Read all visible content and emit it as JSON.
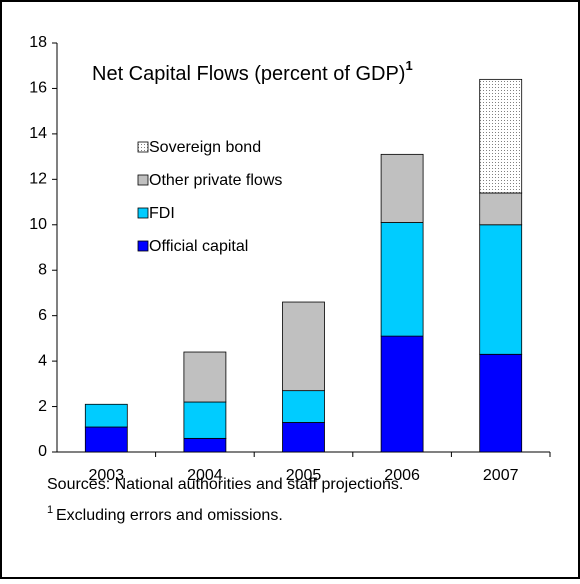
{
  "chart_data": {
    "type": "stacked-bar",
    "title": "Net Capital Flows (percent of GDP)",
    "title_superscript": "1",
    "categories": [
      "2003",
      "2004",
      "2005",
      "2006",
      "2007"
    ],
    "series": [
      {
        "name": "Official capital",
        "color": "#0000ff",
        "values": [
          1.1,
          0.6,
          1.3,
          5.1,
          4.3
        ]
      },
      {
        "name": "FDI",
        "color": "#00ccff",
        "values": [
          1.0,
          1.6,
          1.4,
          5.0,
          5.7
        ]
      },
      {
        "name": "Other private flows",
        "color": "#c0c0c0",
        "values": [
          0,
          2.2,
          3.9,
          3.0,
          1.4
        ]
      },
      {
        "name": "Sovereign bond",
        "color": "#808080",
        "pattern": "dotted",
        "values": [
          0,
          0,
          0,
          0,
          5.0
        ]
      }
    ],
    "ylim": [
      0,
      18
    ],
    "yticks": [
      0,
      2,
      4,
      6,
      8,
      10,
      12,
      14,
      16,
      18
    ],
    "legend": "upper-left",
    "source": "Sources: National authorities and staff projections.",
    "footnote_marker": "1",
    "footnote": "Excluding errors and omissions."
  }
}
